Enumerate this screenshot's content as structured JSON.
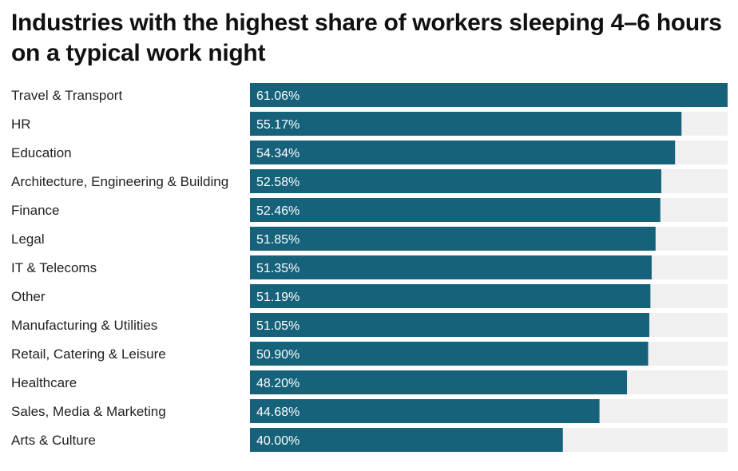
{
  "chart_data": {
    "type": "bar",
    "orientation": "horizontal",
    "title": "Industries with the highest share of workers sleeping 4–6 hours on a typical work night",
    "categories": [
      "Travel & Transport",
      "HR",
      "Education",
      "Architecture, Engineering & Building",
      "Finance",
      "Legal",
      "IT & Telecoms",
      "Other",
      "Manufacturing & Utilities",
      "Retail, Catering & Leisure",
      "Healthcare",
      "Sales, Media & Marketing",
      "Arts & Culture"
    ],
    "values": [
      61.06,
      55.17,
      54.34,
      52.58,
      52.46,
      51.85,
      51.35,
      51.19,
      51.05,
      50.9,
      48.2,
      44.68,
      40.0
    ],
    "value_labels": [
      "61.06%",
      "55.17%",
      "54.34%",
      "52.58%",
      "52.46%",
      "51.85%",
      "51.35%",
      "51.19%",
      "51.05%",
      "50.90%",
      "48.20%",
      "44.68%",
      "40.00%"
    ],
    "xlim": [
      0,
      61.06
    ],
    "grid": false,
    "colors": {
      "bar": "#15627a",
      "track": "#f0f0f0"
    }
  }
}
